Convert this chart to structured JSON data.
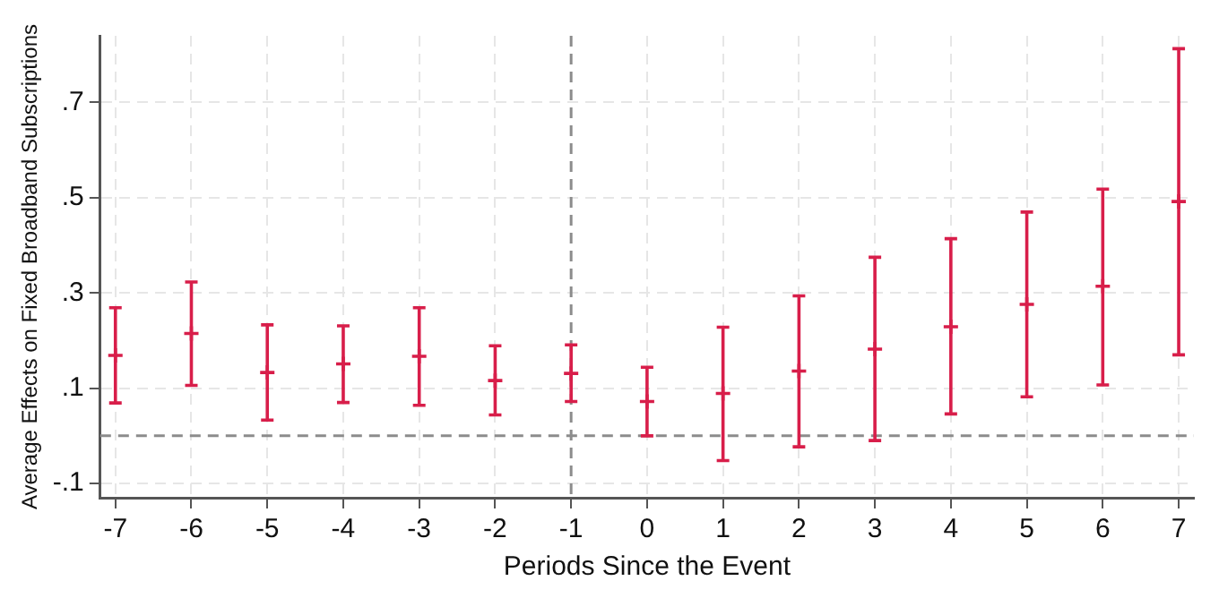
{
  "chart_data": {
    "type": "scatter",
    "xlabel": "Periods Since the Event",
    "ylabel": "Average Effects on Fixed Broadband Subscriptions",
    "x": [
      -7,
      -6,
      -5,
      -4,
      -3,
      -2,
      -1,
      0,
      1,
      2,
      3,
      4,
      5,
      6,
      7
    ],
    "series": [
      {
        "color": "#d81e4a",
        "values": [
          0.169,
          0.215,
          0.133,
          0.151,
          0.167,
          0.116,
          0.131,
          0.072,
          0.089,
          0.136,
          0.182,
          0.229,
          0.276,
          0.314,
          0.492
        ],
        "errors": [
          [
            0.069,
            0.269
          ],
          [
            0.106,
            0.323
          ],
          [
            0.033,
            0.233
          ],
          [
            0.07,
            0.231
          ],
          [
            0.064,
            0.269
          ],
          [
            0.044,
            0.189
          ],
          [
            0.072,
            0.191
          ],
          [
            0.0,
            0.144
          ],
          [
            -0.052,
            0.228
          ],
          [
            -0.023,
            0.294
          ],
          [
            -0.01,
            0.375
          ],
          [
            0.046,
            0.414
          ],
          [
            0.082,
            0.47
          ],
          [
            0.107,
            0.518
          ],
          [
            0.17,
            0.813
          ]
        ]
      }
    ],
    "xlim": [
      -7.2,
      7.2
    ],
    "xticks": [
      -7,
      -6,
      -5,
      -4,
      -3,
      -2,
      -1,
      0,
      1,
      2,
      3,
      4,
      5,
      6,
      7
    ],
    "ylim": [
      -0.13,
      0.84
    ],
    "yticks": [
      {
        "value": -0.1,
        "label": "-.1"
      },
      {
        "value": 0.1,
        "label": ".1"
      },
      {
        "value": 0.3,
        "label": ".3"
      },
      {
        "value": 0.5,
        "label": ".5"
      },
      {
        "value": 0.7,
        "label": ".7"
      }
    ],
    "ref_lines": [
      {
        "axis": "x",
        "value": -1,
        "color": "#8c8c8c",
        "line_style": "dashed"
      },
      {
        "axis": "y",
        "value": 0,
        "color": "#8c8c8c",
        "line_style": "dashed"
      }
    ],
    "grid": true,
    "legend": false,
    "marker": "cross"
  }
}
